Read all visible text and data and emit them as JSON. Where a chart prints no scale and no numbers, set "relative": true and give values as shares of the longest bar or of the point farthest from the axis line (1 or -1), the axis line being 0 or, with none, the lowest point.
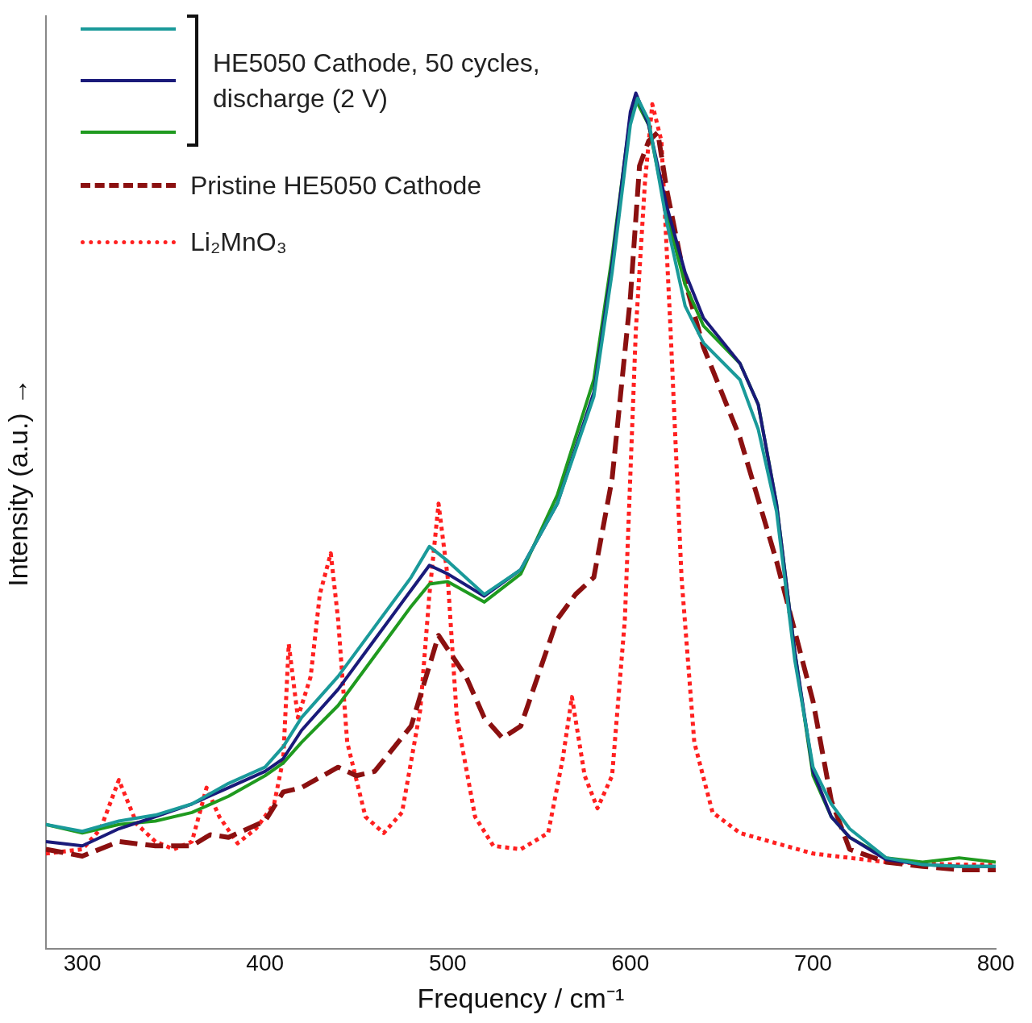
{
  "chart_data": {
    "type": "line",
    "relative": true,
    "xlabel": "Frequency / cm⁻¹",
    "ylabel": "Intensity (a.u.) →",
    "xlim": [
      280,
      800
    ],
    "xticks": [
      300,
      400,
      500,
      600,
      700,
      800
    ],
    "grid": false,
    "legend": "top left",
    "marker": "none",
    "series": [
      {
        "color": "#1a9a9a",
        "line_style": "solid",
        "x": [
          280,
          300,
          320,
          340,
          360,
          380,
          400,
          410,
          420,
          440,
          460,
          480,
          490,
          500,
          520,
          540,
          560,
          580,
          590,
          600,
          604,
          610,
          620,
          630,
          640,
          660,
          670,
          680,
          690,
          700,
          710,
          720,
          740,
          760,
          780,
          800
        ],
        "values": [
          0.145,
          0.137,
          0.149,
          0.156,
          0.169,
          0.193,
          0.212,
          0.236,
          0.27,
          0.318,
          0.376,
          0.434,
          0.47,
          0.453,
          0.414,
          0.443,
          0.52,
          0.645,
          0.79,
          0.963,
          0.994,
          0.968,
          0.848,
          0.751,
          0.708,
          0.665,
          0.607,
          0.511,
          0.337,
          0.212,
          0.169,
          0.14,
          0.106,
          0.098,
          0.096,
          0.096
        ]
      },
      {
        "name": "HE5050 Cathode, 50 cycles, discharge (2 V)",
        "color": "#1a1a7a",
        "line_style": "solid",
        "x": [
          280,
          300,
          320,
          340,
          360,
          380,
          400,
          410,
          420,
          440,
          460,
          480,
          490,
          500,
          520,
          540,
          560,
          580,
          590,
          600,
          603,
          610,
          620,
          630,
          640,
          660,
          670,
          680,
          690,
          700,
          710,
          720,
          740,
          760,
          780,
          800
        ],
        "values": [
          0.125,
          0.12,
          0.14,
          0.154,
          0.169,
          0.188,
          0.207,
          0.222,
          0.255,
          0.303,
          0.361,
          0.419,
          0.448,
          0.438,
          0.412,
          0.443,
          0.52,
          0.65,
          0.8,
          0.978,
          1,
          0.963,
          0.867,
          0.79,
          0.737,
          0.684,
          0.636,
          0.52,
          0.347,
          0.207,
          0.154,
          0.13,
          0.104,
          0.098,
          0.096,
          0.096
        ]
      },
      {
        "color": "#1f9a1f",
        "line_style": "solid",
        "x": [
          280,
          300,
          320,
          340,
          360,
          380,
          400,
          410,
          420,
          440,
          460,
          480,
          490,
          500,
          520,
          540,
          560,
          580,
          590,
          600,
          603,
          610,
          620,
          630,
          640,
          660,
          670,
          680,
          690,
          700,
          710,
          720,
          740,
          760,
          780,
          800
        ],
        "values": [
          0.145,
          0.135,
          0.145,
          0.149,
          0.159,
          0.178,
          0.202,
          0.217,
          0.241,
          0.284,
          0.342,
          0.4,
          0.426,
          0.429,
          0.405,
          0.438,
          0.53,
          0.665,
          0.809,
          0.973,
          0.992,
          0.963,
          0.857,
          0.776,
          0.728,
          0.684,
          0.636,
          0.52,
          0.347,
          0.202,
          0.154,
          0.13,
          0.106,
          0.101,
          0.106,
          0.101
        ]
      },
      {
        "name": "Pristine HE5050 Cathode",
        "color": "#8b1010",
        "line_style": "dashed",
        "x": [
          280,
          300,
          320,
          340,
          360,
          370,
          380,
          400,
          410,
          420,
          440,
          450,
          460,
          480,
          495,
          510,
          520,
          530,
          540,
          560,
          570,
          580,
          590,
          600,
          605,
          610,
          615,
          620,
          630,
          640,
          660,
          680,
          700,
          710,
          720,
          740,
          760,
          780,
          800
        ],
        "values": [
          0.116,
          0.108,
          0.125,
          0.12,
          0.12,
          0.133,
          0.13,
          0.149,
          0.183,
          0.188,
          0.212,
          0.202,
          0.207,
          0.26,
          0.366,
          0.318,
          0.27,
          0.246,
          0.26,
          0.385,
          0.414,
          0.434,
          0.549,
          0.761,
          0.915,
          0.944,
          0.954,
          0.886,
          0.78,
          0.703,
          0.597,
          0.453,
          0.289,
          0.173,
          0.116,
          0.101,
          0.096,
          0.092,
          0.092
        ]
      },
      {
        "name": "Li₂MnO₃",
        "color": "#ff2020",
        "line_style": "dotted",
        "x": [
          280,
          300,
          310,
          320,
          330,
          340,
          350,
          360,
          368,
          375,
          385,
          395,
          405,
          410,
          413,
          418,
          425,
          430,
          436,
          440,
          445,
          455,
          465,
          475,
          485,
          490,
          495,
          500,
          505,
          515,
          525,
          540,
          555,
          563,
          568,
          575,
          582,
          590,
          597,
          603,
          608,
          612,
          617,
          622,
          628,
          635,
          645,
          660,
          700,
          740,
          780,
          800
        ],
        "values": [
          0.111,
          0.116,
          0.14,
          0.197,
          0.145,
          0.125,
          0.116,
          0.125,
          0.188,
          0.154,
          0.123,
          0.14,
          0.169,
          0.222,
          0.356,
          0.27,
          0.318,
          0.414,
          0.462,
          0.385,
          0.241,
          0.154,
          0.135,
          0.159,
          0.279,
          0.414,
          0.52,
          0.434,
          0.27,
          0.154,
          0.12,
          0.116,
          0.135,
          0.222,
          0.294,
          0.202,
          0.164,
          0.202,
          0.385,
          0.723,
          0.896,
          0.987,
          0.944,
          0.723,
          0.434,
          0.241,
          0.159,
          0.135,
          0.111,
          0.101,
          0.098,
          0.098
        ]
      }
    ]
  }
}
